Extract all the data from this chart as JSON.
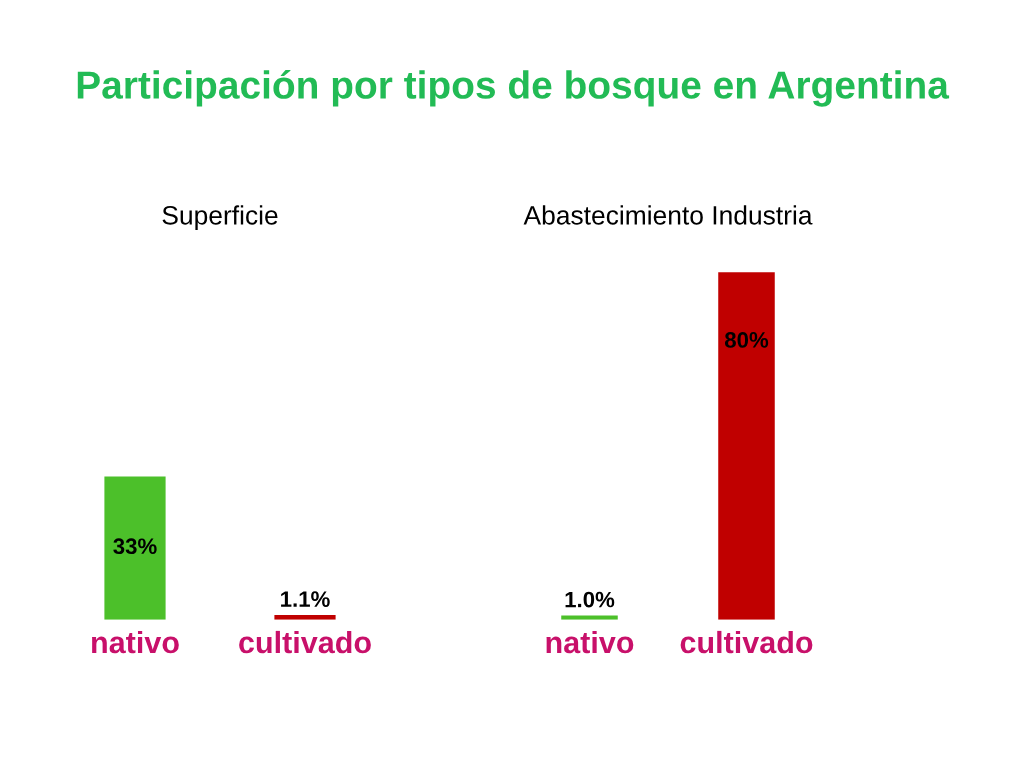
{
  "chart_data": [
    {
      "type": "bar",
      "title": "Participación por tipos de bosque en Argentina",
      "subtitle": "Superficie",
      "categories": [
        "nativo",
        "cultivado"
      ],
      "values": [
        33,
        1.1
      ],
      "colors": [
        "#4cc02a",
        "#c00000"
      ],
      "value_labels": [
        "33%",
        "1.1%"
      ],
      "tick_labels": "x"
    },
    {
      "type": "bar",
      "subtitle": "Abastecimiento Industria",
      "categories": [
        "nativo",
        "cultivado"
      ],
      "values": [
        1.0,
        80
      ],
      "colors": [
        "#4cc02a",
        "#c00000"
      ],
      "value_labels": [
        "1.0%",
        "80%"
      ],
      "tick_labels": "x"
    }
  ]
}
